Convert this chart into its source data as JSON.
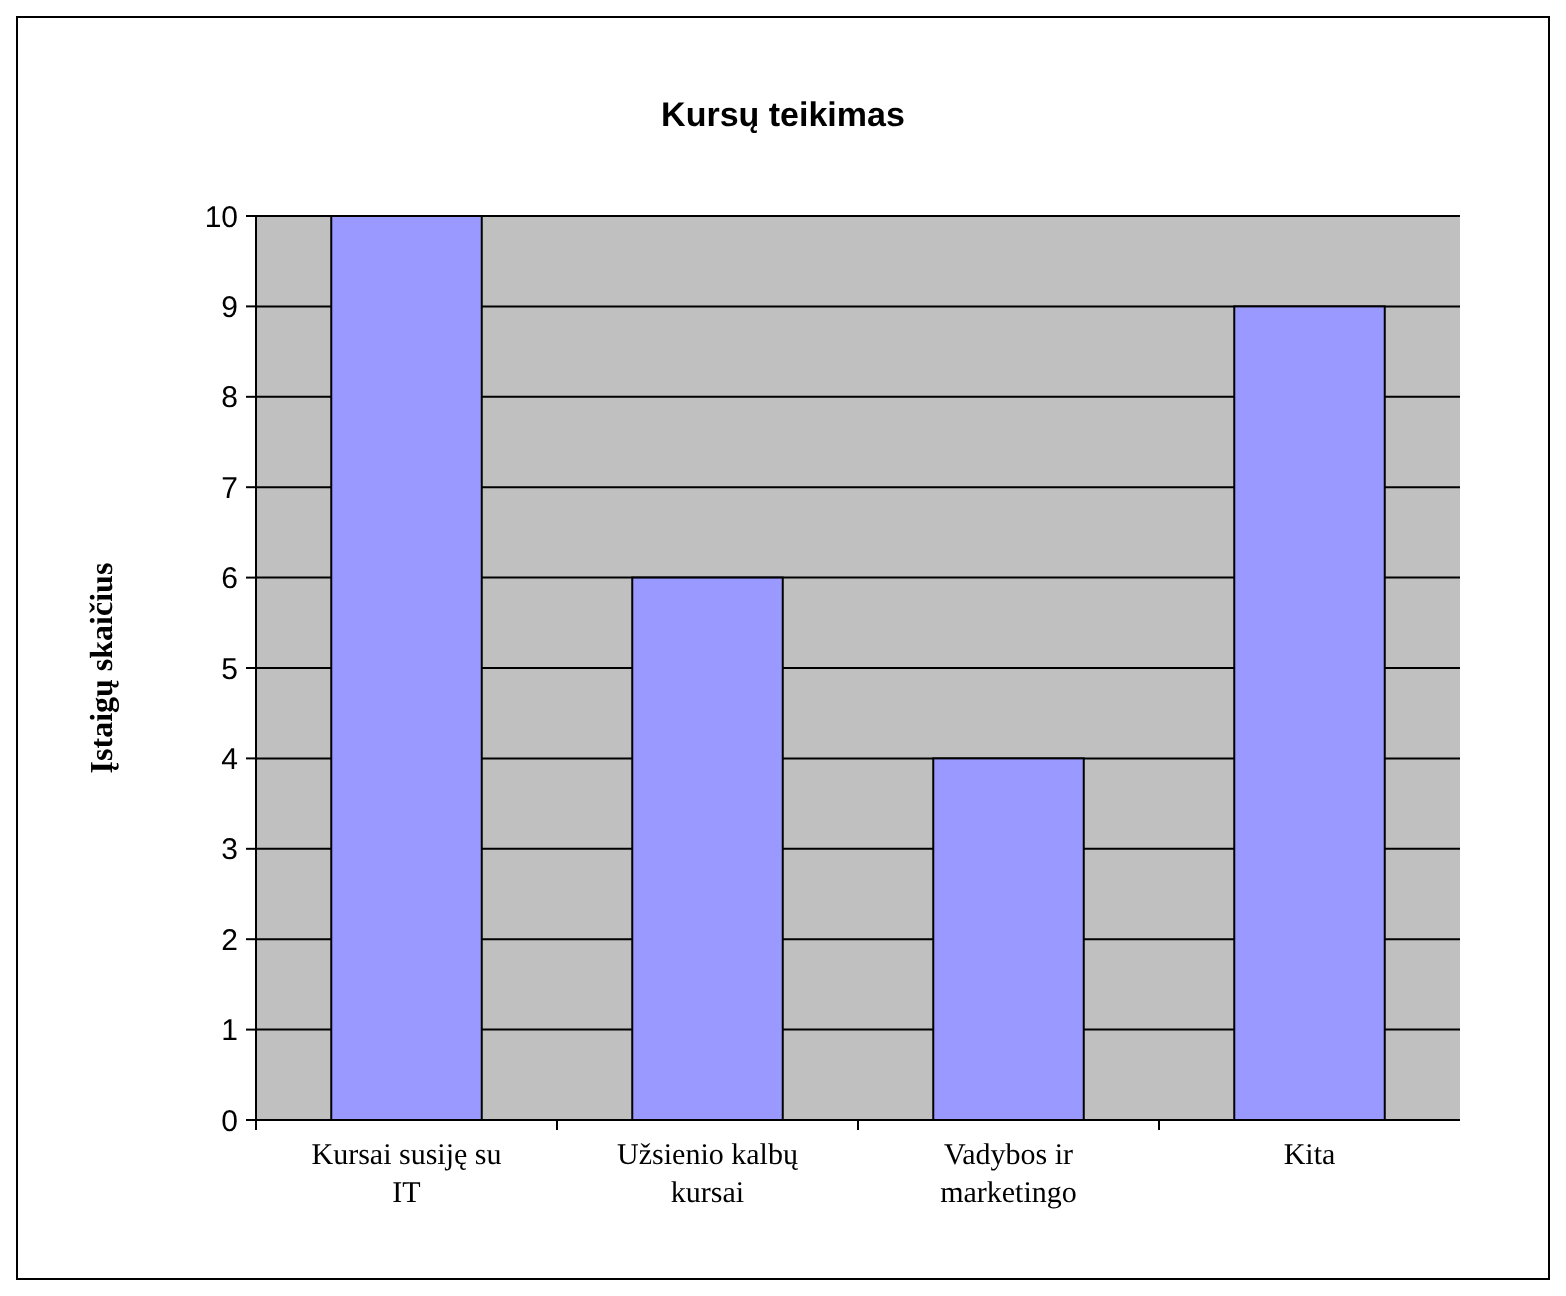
{
  "chart_data": {
    "type": "bar",
    "title": "Kursų teikimas",
    "ylabel": "Įstaigų skaičius",
    "categories": [
      "Kursai susiję su IT",
      "Užsienio kalbų kursai",
      "Vadybos ir marketingo",
      "Kita"
    ],
    "values": [
      10,
      6,
      4,
      9
    ],
    "color": "#9999ff",
    "ylim": [
      0,
      10
    ],
    "yticks": [
      0,
      1,
      2,
      3,
      4,
      5,
      6,
      7,
      8,
      9,
      10
    ],
    "grid": "y"
  }
}
